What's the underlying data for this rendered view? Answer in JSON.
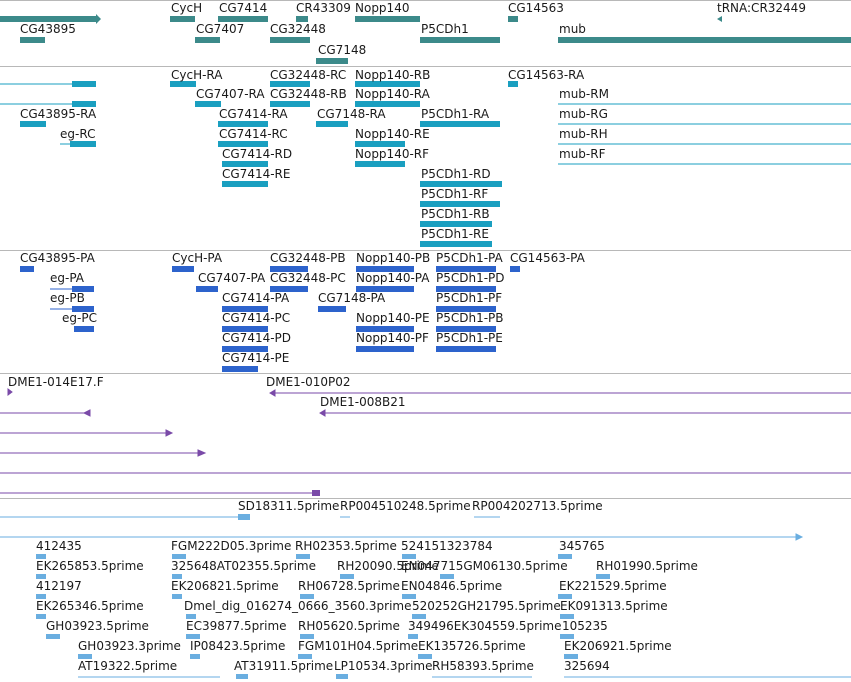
{
  "tracks": [
    {
      "id": "genes",
      "colors": {
        "feature": "#3c8a8a",
        "tick": "#3c8a8a"
      },
      "labels": [
        "CycH",
        "CG7414",
        "CR43309",
        "Nopp140",
        "CG14563",
        "tRNA:CR32449",
        "CG43895",
        "CG7407",
        "CG32448",
        "P5CDh1",
        "mub",
        "CG7148"
      ]
    },
    {
      "id": "transcripts",
      "colors": {
        "feature": "#1a9fc0"
      },
      "labels": [
        "CycH-RA",
        "CG32448-RC",
        "Nopp140-RB",
        "CG14563-RA",
        "CG7407-RA",
        "CG32448-RB",
        "Nopp140-RA",
        "mub-RM",
        "CG43895-RA",
        "CG7414-RA",
        "CG7148-RA",
        "P5CDh1-RA",
        "mub-RG",
        "eg-RC",
        "CG7414-RC",
        "Nopp140-RE",
        "mub-RH",
        "CG7414-RD",
        "Nopp140-RF",
        "mub-RF",
        "CG7414-RE",
        "P5CDh1-RD",
        "P5CDh1-RF",
        "P5CDh1-RB",
        "P5CDh1-RE"
      ]
    },
    {
      "id": "proteins",
      "colors": {
        "feature": "#2d63cc"
      },
      "labels": [
        "CG43895-PA",
        "CycH-PA",
        "CG32448-PB",
        "Nopp140-PB",
        "P5CDh1-PA",
        "CG14563-PA",
        "eg-PA",
        "CG7407-PA",
        "CG32448-PC",
        "Nopp140-PA",
        "P5CDh1-PD",
        "eg-PB",
        "CG7414-PA",
        "CG7148-PA",
        "P5CDh1-PF",
        "eg-PC",
        "CG7414-PC",
        "Nopp140-PE",
        "P5CDh1-PB",
        "CG7414-PD",
        "Nopp140-PF",
        "P5CDh1-PE",
        "CG7414-PE"
      ]
    },
    {
      "id": "clones",
      "colors": {
        "feature": "#7a4aa8"
      },
      "labels": [
        "DME1-014E17.F",
        "DME1-010P02",
        "DME1-008B21"
      ]
    },
    {
      "id": "ests",
      "colors": {
        "feature": "#6aaee0"
      },
      "labels": [
        "SD18311.5prime",
        "RP004510248.5prime",
        "RP004202713.5prime",
        "412435",
        "FGM222D05.3prime",
        "RH02353.5prime",
        "524151323784",
        "345765",
        "EK265853.5prime",
        "325648AT02355.5prime",
        "RH20090.5prime",
        "EN047715GM06130.5prime",
        "RH01990.5prime",
        "412197",
        "EK206821.5prime",
        "RH06728.5prime",
        "EN04846.5prime",
        "EK221529.5prime",
        "EK265346.5prime",
        "Dmel_dig_016274_0666_3560.3prime",
        "520252GH21795.5prime",
        "EK091313.5prime",
        "GH03923.5prime",
        "EC39877.5prime",
        "RH05620.5prime",
        "349496EK304559.5prime",
        "105235",
        "GH03923.3prime",
        "IP08423.5prime",
        "FGM101H04.5prime",
        "EK135726.5prime",
        "EK206921.5prime",
        "AT19322.5prime",
        "AT31911.5prime",
        "LP10534.3prime",
        "RH58393.5prime",
        "325694"
      ]
    }
  ]
}
